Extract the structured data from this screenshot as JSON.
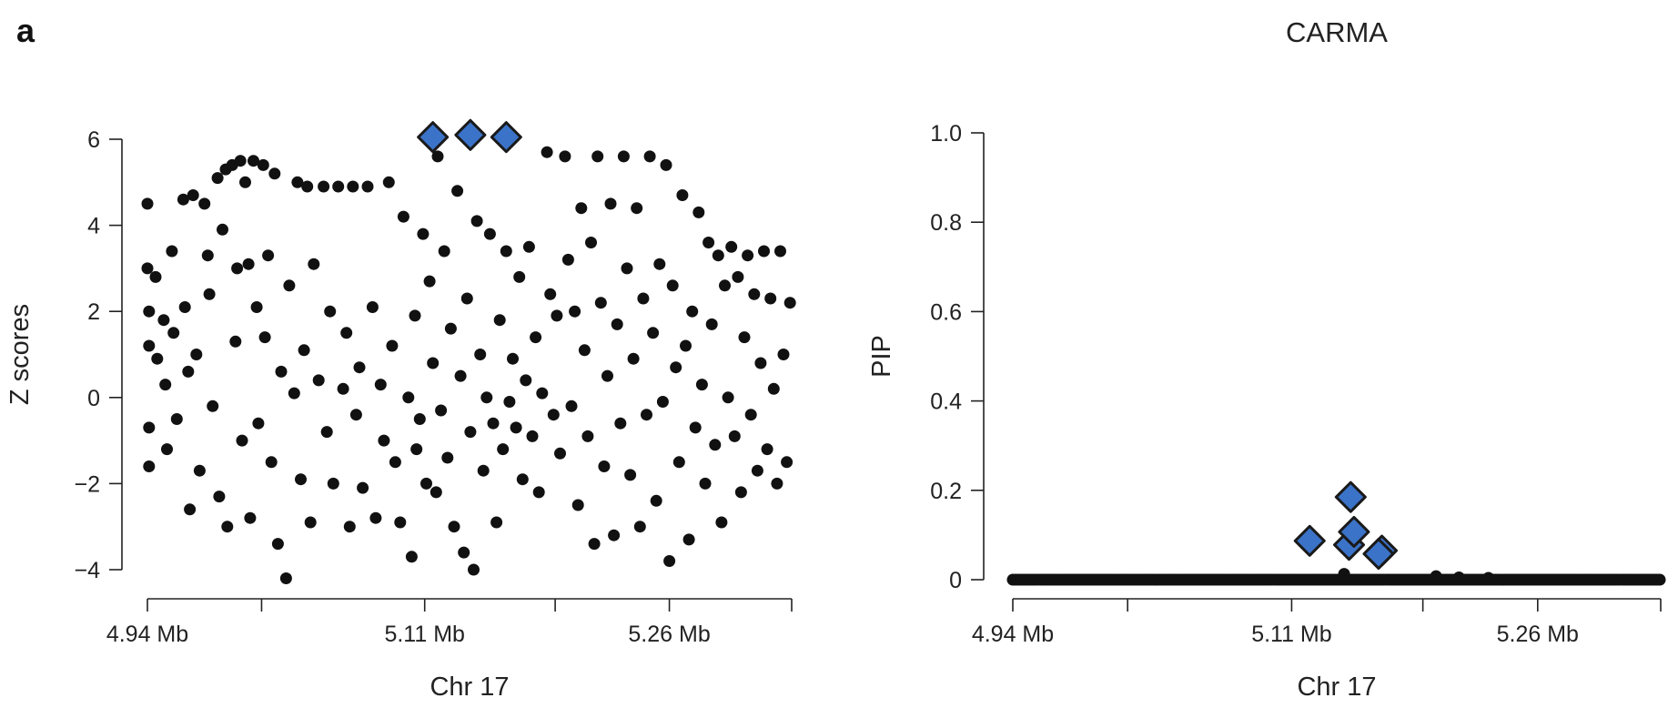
{
  "figure": {
    "panel_letter": "a",
    "colors": {
      "points": "#111111",
      "highlight_fill": "#3b73c8",
      "highlight_stroke": "#1a1a1a",
      "axis": "#222222"
    }
  },
  "chart_data": [
    {
      "type": "scatter",
      "title": "",
      "xlabel": "Chr 17",
      "ylabel": "Z scores",
      "x_unit": "Mb",
      "xlim": [
        4.94,
        5.335
      ],
      "ylim": [
        -4,
        6
      ],
      "x_ticks": [
        4.94,
        5.01,
        5.11,
        5.19,
        5.26,
        5.335
      ],
      "x_tick_labels": [
        "4.94 Mb",
        "",
        "5.11 Mb",
        "",
        "5.26 Mb",
        ""
      ],
      "y_ticks": [
        -4,
        -2,
        0,
        2,
        4,
        6
      ],
      "y_tick_labels": [
        "−4",
        "−2",
        "0",
        "2",
        "4",
        "6"
      ],
      "grid": false,
      "series": [
        {
          "marker": "circle",
          "color": "#111111",
          "points": [
            [
              4.94,
              4.5
            ],
            [
              4.94,
              3.0
            ],
            [
              4.941,
              2.0
            ],
            [
              4.941,
              1.2
            ],
            [
              4.941,
              -0.7
            ],
            [
              4.941,
              -1.6
            ],
            [
              4.945,
              2.8
            ],
            [
              4.946,
              0.9
            ],
            [
              4.95,
              1.8
            ],
            [
              4.951,
              0.3
            ],
            [
              4.952,
              -1.2
            ],
            [
              4.955,
              3.4
            ],
            [
              4.956,
              1.5
            ],
            [
              4.958,
              -0.5
            ],
            [
              4.962,
              4.6
            ],
            [
              4.963,
              2.1
            ],
            [
              4.965,
              0.6
            ],
            [
              4.966,
              -2.6
            ],
            [
              4.968,
              4.7
            ],
            [
              4.97,
              1.0
            ],
            [
              4.972,
              -1.7
            ],
            [
              4.975,
              4.5
            ],
            [
              4.977,
              3.3
            ],
            [
              4.978,
              2.4
            ],
            [
              4.98,
              -0.2
            ],
            [
              4.983,
              5.1
            ],
            [
              4.984,
              -2.3
            ],
            [
              4.986,
              3.9
            ],
            [
              4.988,
              5.3
            ],
            [
              4.989,
              -3.0
            ],
            [
              4.992,
              5.4
            ],
            [
              4.994,
              1.3
            ],
            [
              4.995,
              3.0
            ],
            [
              4.997,
              5.5
            ],
            [
              4.998,
              -1.0
            ],
            [
              5.0,
              5.0
            ],
            [
              5.002,
              3.1
            ],
            [
              5.003,
              -2.8
            ],
            [
              5.005,
              5.5
            ],
            [
              5.007,
              2.1
            ],
            [
              5.008,
              -0.6
            ],
            [
              5.011,
              5.4
            ],
            [
              5.012,
              1.4
            ],
            [
              5.014,
              3.3
            ],
            [
              5.016,
              -1.5
            ],
            [
              5.018,
              5.2
            ],
            [
              5.02,
              -3.4
            ],
            [
              5.022,
              0.6
            ],
            [
              5.025,
              -4.2
            ],
            [
              5.027,
              2.6
            ],
            [
              5.03,
              0.1
            ],
            [
              5.032,
              5.0
            ],
            [
              5.034,
              -1.9
            ],
            [
              5.036,
              1.1
            ],
            [
              5.038,
              4.9
            ],
            [
              5.04,
              -2.9
            ],
            [
              5.042,
              3.1
            ],
            [
              5.045,
              0.4
            ],
            [
              5.048,
              4.9
            ],
            [
              5.05,
              -0.8
            ],
            [
              5.052,
              2.0
            ],
            [
              5.054,
              -2.0
            ],
            [
              5.057,
              4.9
            ],
            [
              5.06,
              0.2
            ],
            [
              5.062,
              1.5
            ],
            [
              5.064,
              -3.0
            ],
            [
              5.066,
              4.9
            ],
            [
              5.068,
              -0.4
            ],
            [
              5.07,
              0.7
            ],
            [
              5.072,
              -2.1
            ],
            [
              5.075,
              4.9
            ],
            [
              5.078,
              2.1
            ],
            [
              5.08,
              -2.8
            ],
            [
              5.083,
              0.3
            ],
            [
              5.085,
              -1.0
            ],
            [
              5.088,
              5.0
            ],
            [
              5.09,
              1.2
            ],
            [
              5.092,
              -1.5
            ],
            [
              5.095,
              -2.9
            ],
            [
              5.097,
              4.2
            ],
            [
              5.1,
              0.0
            ],
            [
              5.102,
              -3.7
            ],
            [
              5.104,
              1.9
            ],
            [
              5.105,
              -1.2
            ],
            [
              5.107,
              -0.5
            ],
            [
              5.109,
              3.8
            ],
            [
              5.111,
              -2.0
            ],
            [
              5.113,
              2.7
            ],
            [
              5.115,
              0.8
            ],
            [
              5.117,
              -2.2
            ],
            [
              5.118,
              5.6
            ],
            [
              5.12,
              -0.3
            ],
            [
              5.122,
              3.4
            ],
            [
              5.124,
              -1.4
            ],
            [
              5.126,
              1.6
            ],
            [
              5.128,
              -3.0
            ],
            [
              5.13,
              4.8
            ],
            [
              5.132,
              0.5
            ],
            [
              5.134,
              -3.6
            ],
            [
              5.136,
              2.3
            ],
            [
              5.138,
              -0.8
            ],
            [
              5.14,
              -4.0
            ],
            [
              5.142,
              4.1
            ],
            [
              5.144,
              1.0
            ],
            [
              5.146,
              -1.7
            ],
            [
              5.148,
              0.0
            ],
            [
              5.15,
              3.8
            ],
            [
              5.152,
              -0.6
            ],
            [
              5.154,
              -2.9
            ],
            [
              5.156,
              1.8
            ],
            [
              5.158,
              -1.2
            ],
            [
              5.16,
              3.4
            ],
            [
              5.162,
              -0.1
            ],
            [
              5.164,
              0.9
            ],
            [
              5.166,
              -0.7
            ],
            [
              5.168,
              2.8
            ],
            [
              5.17,
              -1.9
            ],
            [
              5.172,
              0.4
            ],
            [
              5.174,
              3.5
            ],
            [
              5.176,
              -0.9
            ],
            [
              5.178,
              1.4
            ],
            [
              5.18,
              -2.2
            ],
            [
              5.182,
              0.1
            ],
            [
              5.185,
              5.7
            ],
            [
              5.187,
              2.4
            ],
            [
              5.189,
              -0.4
            ],
            [
              5.191,
              1.9
            ],
            [
              5.193,
              -1.3
            ],
            [
              5.196,
              5.6
            ],
            [
              5.198,
              3.2
            ],
            [
              5.2,
              -0.2
            ],
            [
              5.202,
              2.0
            ],
            [
              5.204,
              -2.5
            ],
            [
              5.206,
              4.4
            ],
            [
              5.208,
              1.1
            ],
            [
              5.21,
              -0.9
            ],
            [
              5.212,
              3.6
            ],
            [
              5.214,
              -3.4
            ],
            [
              5.216,
              5.6
            ],
            [
              5.218,
              2.2
            ],
            [
              5.22,
              -1.6
            ],
            [
              5.222,
              0.5
            ],
            [
              5.224,
              4.5
            ],
            [
              5.226,
              -3.2
            ],
            [
              5.228,
              1.7
            ],
            [
              5.23,
              -0.6
            ],
            [
              5.232,
              5.6
            ],
            [
              5.234,
              3.0
            ],
            [
              5.236,
              -1.8
            ],
            [
              5.238,
              0.9
            ],
            [
              5.24,
              4.4
            ],
            [
              5.242,
              -3.0
            ],
            [
              5.244,
              2.3
            ],
            [
              5.246,
              -0.4
            ],
            [
              5.248,
              5.6
            ],
            [
              5.25,
              1.5
            ],
            [
              5.252,
              -2.4
            ],
            [
              5.254,
              3.1
            ],
            [
              5.256,
              -0.1
            ],
            [
              5.258,
              5.4
            ],
            [
              5.26,
              -3.8
            ],
            [
              5.262,
              2.6
            ],
            [
              5.264,
              0.7
            ],
            [
              5.266,
              -1.5
            ],
            [
              5.268,
              4.7
            ],
            [
              5.27,
              1.2
            ],
            [
              5.272,
              -3.3
            ],
            [
              5.274,
              2.0
            ],
            [
              5.276,
              -0.7
            ],
            [
              5.278,
              4.3
            ],
            [
              5.28,
              0.3
            ],
            [
              5.282,
              -2.0
            ],
            [
              5.284,
              3.6
            ],
            [
              5.286,
              1.7
            ],
            [
              5.288,
              -1.1
            ],
            [
              5.29,
              3.3
            ],
            [
              5.292,
              -2.9
            ],
            [
              5.294,
              2.6
            ],
            [
              5.296,
              0.0
            ],
            [
              5.298,
              3.5
            ],
            [
              5.3,
              -0.9
            ],
            [
              5.302,
              2.8
            ],
            [
              5.304,
              -2.2
            ],
            [
              5.306,
              1.4
            ],
            [
              5.308,
              3.3
            ],
            [
              5.31,
              -0.4
            ],
            [
              5.312,
              2.4
            ],
            [
              5.314,
              -1.7
            ],
            [
              5.316,
              0.8
            ],
            [
              5.318,
              3.4
            ],
            [
              5.32,
              -1.2
            ],
            [
              5.322,
              2.3
            ],
            [
              5.324,
              0.2
            ],
            [
              5.326,
              -2.0
            ],
            [
              5.328,
              3.4
            ],
            [
              5.33,
              1.0
            ],
            [
              5.332,
              -1.5
            ],
            [
              5.334,
              2.2
            ]
          ]
        },
        {
          "marker": "diamond",
          "color": "#3b73c8",
          "points": [
            [
              5.115,
              6.05
            ],
            [
              5.138,
              6.1
            ],
            [
              5.16,
              6.05
            ]
          ]
        }
      ]
    },
    {
      "type": "scatter",
      "title": "CARMA",
      "xlabel": "Chr 17",
      "ylabel": "PIP",
      "x_unit": "Mb",
      "xlim": [
        4.94,
        5.335
      ],
      "ylim": [
        0,
        1.0
      ],
      "x_ticks": [
        4.94,
        5.01,
        5.11,
        5.19,
        5.26,
        5.335
      ],
      "x_tick_labels": [
        "4.94 Mb",
        "",
        "5.11 Mb",
        "",
        "5.26 Mb",
        ""
      ],
      "y_ticks": [
        0,
        0.2,
        0.4,
        0.6,
        0.8,
        1.0
      ],
      "y_tick_labels": [
        "0",
        "0.2",
        "0.4",
        "0.6",
        "0.8",
        "1.0"
      ],
      "grid": false,
      "series": [
        {
          "marker": "circle",
          "color": "#111111",
          "baseline_points": {
            "x_range": [
              4.94,
              5.335
            ],
            "y": 0
          },
          "points": [
            [
              5.142,
              0.013
            ],
            [
              5.198,
              0.008
            ],
            [
              5.212,
              0.005
            ],
            [
              5.23,
              0.004
            ]
          ]
        },
        {
          "marker": "diamond",
          "color": "#3b73c8",
          "points": [
            [
              5.121,
              0.087
            ],
            [
              5.145,
              0.078
            ],
            [
              5.148,
              0.107
            ],
            [
              5.146,
              0.185
            ],
            [
              5.165,
              0.065
            ],
            [
              5.163,
              0.058
            ]
          ]
        }
      ]
    }
  ]
}
